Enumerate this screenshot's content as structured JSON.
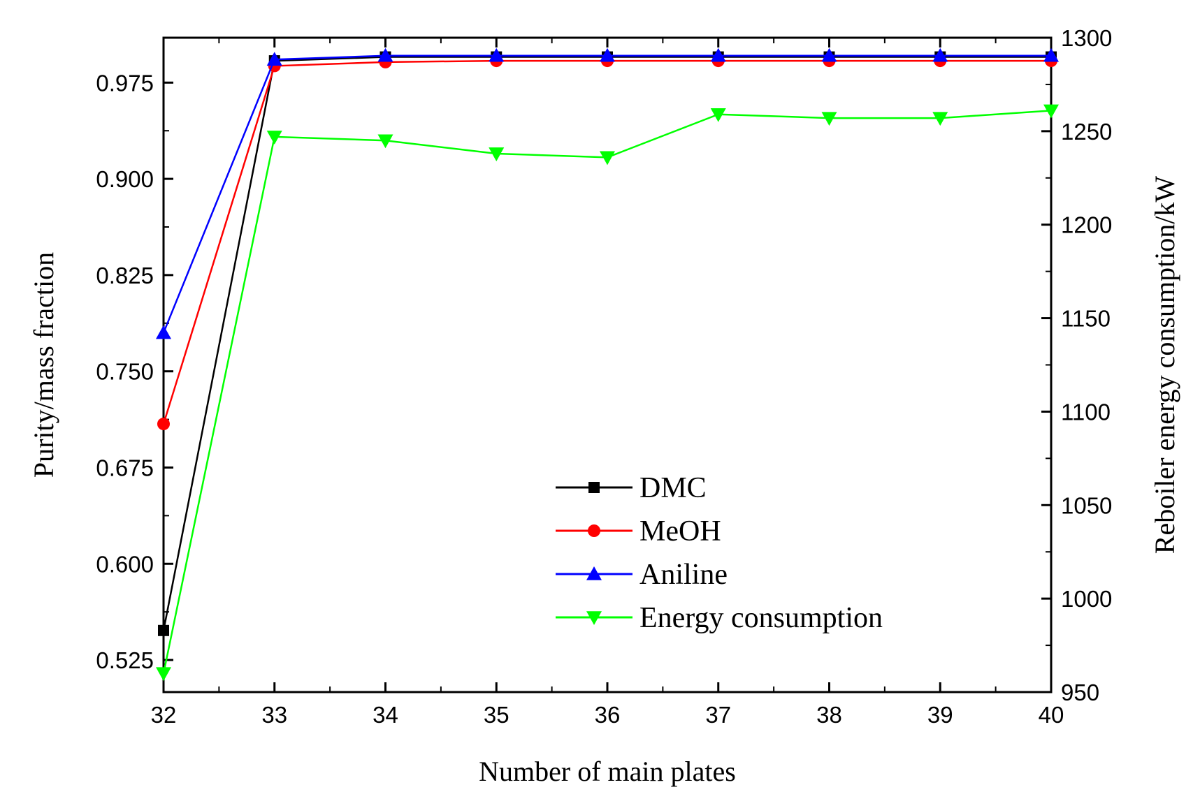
{
  "chart_data": {
    "type": "line",
    "xlabel": "Number of main plates",
    "ylabel_left": "Purity/mass fraction",
    "ylabel_right": "Reboiler energy consumption/kW",
    "x": [
      32,
      33,
      34,
      35,
      36,
      37,
      38,
      39,
      40
    ],
    "xlim": [
      32,
      40
    ],
    "x_ticks": [
      "32",
      "33",
      "34",
      "35",
      "36",
      "37",
      "38",
      "39",
      "40"
    ],
    "ylim_left": [
      0.5,
      1.01
    ],
    "y_ticks_left": [
      "0.525",
      "0.600",
      "0.675",
      "0.750",
      "0.825",
      "0.900",
      "0.975"
    ],
    "ylim_right": [
      950,
      1300
    ],
    "y_ticks_right": [
      "950",
      "1000",
      "1050",
      "1100",
      "1150",
      "1200",
      "1250",
      "1300"
    ],
    "legend_position": "lower-center",
    "series": [
      {
        "name": "DMC",
        "axis": "left",
        "marker": "square",
        "color": "#000000",
        "values": [
          0.548,
          0.992,
          0.995,
          0.995,
          0.995,
          0.995,
          0.995,
          0.995,
          0.995
        ]
      },
      {
        "name": "MeOH",
        "axis": "left",
        "marker": "circle",
        "color": "#ff0000",
        "values": [
          0.709,
          0.988,
          0.991,
          0.992,
          0.992,
          0.992,
          0.992,
          0.992,
          0.992
        ]
      },
      {
        "name": "Aniline",
        "axis": "left",
        "marker": "triangle-up",
        "color": "#0000ff",
        "values": [
          0.78,
          0.993,
          0.996,
          0.996,
          0.996,
          0.996,
          0.996,
          0.996,
          0.996
        ]
      },
      {
        "name": "Energy consumption",
        "axis": "right",
        "marker": "triangle-down",
        "color": "#00ff00",
        "values": [
          960,
          1247,
          1245,
          1238,
          1236,
          1259,
          1257,
          1257,
          1261
        ]
      }
    ]
  }
}
